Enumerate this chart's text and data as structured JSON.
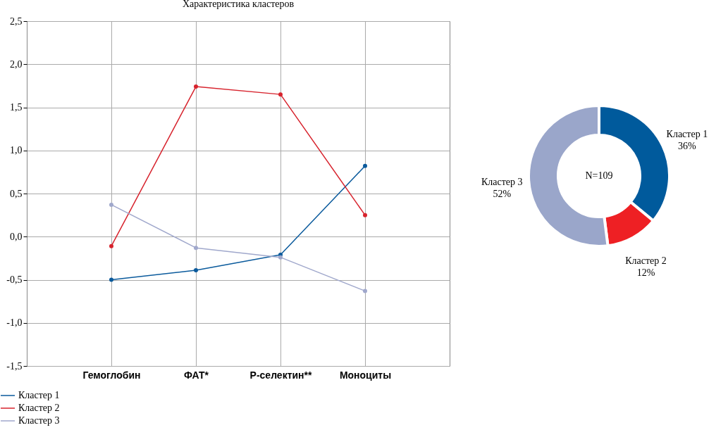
{
  "chart_data": [
    {
      "type": "line",
      "title": "Характеристика кластеров",
      "categories": [
        "Гемоглобин",
        "ФАТ*",
        "P-селектин**",
        "Моноциты"
      ],
      "series": [
        {
          "name": "Кластер 1",
          "color": "#0a5a9c",
          "values": [
            -0.5,
            -0.39,
            -0.21,
            0.82
          ]
        },
        {
          "name": "Кластер 2",
          "color": "#d7232d",
          "values": [
            -0.11,
            1.74,
            1.65,
            0.25
          ]
        },
        {
          "name": "Кластер 3",
          "color": "#a0a8cc",
          "values": [
            0.37,
            -0.13,
            -0.24,
            -0.63
          ]
        }
      ],
      "ylim": [
        -1.5,
        2.5
      ],
      "yticks": [
        {
          "value": -1.5,
          "label": "-1,5"
        },
        {
          "value": -1,
          "label": "-1,0"
        },
        {
          "value": -0.5,
          "label": "-0,5"
        },
        {
          "value": 0,
          "label": "0,0"
        },
        {
          "value": 0.5,
          "label": "0,5"
        },
        {
          "value": 1,
          "label": "1,0"
        },
        {
          "value": 1.5,
          "label": "1,5"
        },
        {
          "value": 2,
          "label": "2,0"
        },
        {
          "value": 2.5,
          "label": "2,5"
        }
      ],
      "grid": true,
      "legend": "bottom left",
      "marker": "circle",
      "line_style": "solid"
    },
    {
      "type": "donut",
      "categories": [
        "Кластер 1",
        "Кластер 2",
        "Кластер 3"
      ],
      "values": [
        36,
        12,
        52
      ],
      "colors": [
        "#005a9c",
        "#ee2024",
        "#9aa6ca"
      ],
      "value_labels": [
        "36%",
        "12%",
        "52%"
      ],
      "annotations": [
        "N=109"
      ]
    }
  ]
}
